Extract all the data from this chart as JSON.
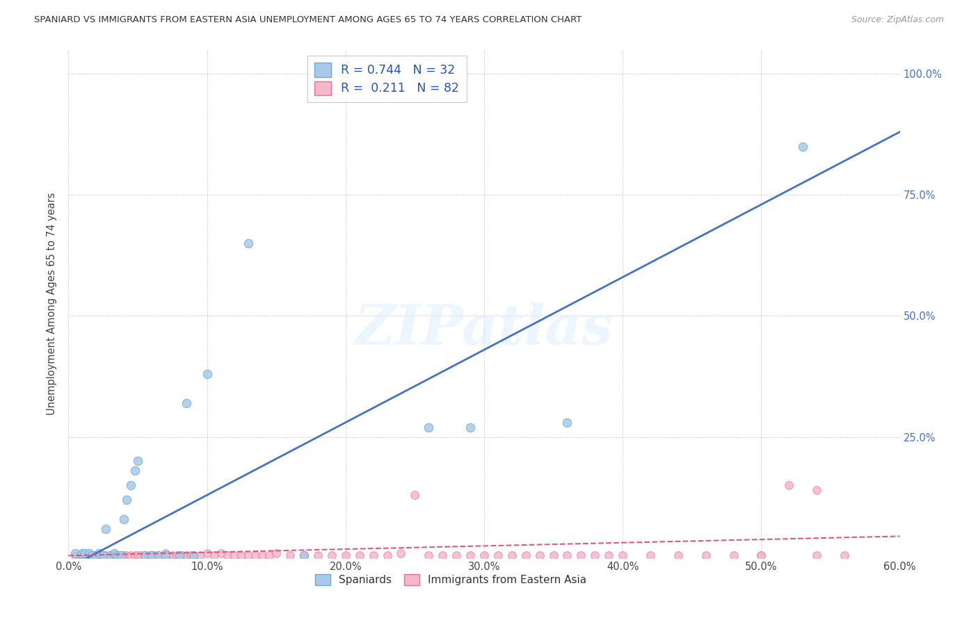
{
  "title": "SPANIARD VS IMMIGRANTS FROM EASTERN ASIA UNEMPLOYMENT AMONG AGES 65 TO 74 YEARS CORRELATION CHART",
  "source": "Source: ZipAtlas.com",
  "ylabel": "Unemployment Among Ages 65 to 74 years",
  "xlim": [
    0.0,
    0.6
  ],
  "ylim": [
    0.0,
    1.05
  ],
  "xtick_labels": [
    "0.0%",
    "10.0%",
    "20.0%",
    "30.0%",
    "40.0%",
    "50.0%",
    "60.0%"
  ],
  "xtick_vals": [
    0.0,
    0.1,
    0.2,
    0.3,
    0.4,
    0.5,
    0.6
  ],
  "right_ytick_labels": [
    "25.0%",
    "50.0%",
    "75.0%",
    "100.0%"
  ],
  "right_ytick_vals": [
    0.25,
    0.5,
    0.75,
    1.0
  ],
  "spaniards_color": "#aac9e8",
  "immigrants_color": "#f5b8ca",
  "spaniards_edge_color": "#6aaad4",
  "immigrants_edge_color": "#e87090",
  "spaniards_line_color": "#4472c4",
  "immigrants_line_color": "#e05878",
  "R_spaniards": 0.744,
  "N_spaniards": 32,
  "R_immigrants": 0.211,
  "N_immigrants": 82,
  "legend_label_spaniards": "Spaniards",
  "legend_label_immigrants": "Immigrants from Eastern Asia",
  "watermark": "ZIPatlas",
  "background_color": "#ffffff",
  "grid_color": "#d0d0d0",
  "title_color": "#333333",
  "spaniards_x": [
    0.005,
    0.01,
    0.012,
    0.015,
    0.017,
    0.02,
    0.022,
    0.025,
    0.027,
    0.03,
    0.033,
    0.035,
    0.038,
    0.04,
    0.042,
    0.045,
    0.048,
    0.05,
    0.055,
    0.06,
    0.065,
    0.07,
    0.08,
    0.085,
    0.09,
    0.1,
    0.13,
    0.17,
    0.26,
    0.29,
    0.36,
    0.53
  ],
  "spaniards_y": [
    0.01,
    0.01,
    0.01,
    0.01,
    0.005,
    0.005,
    0.01,
    0.005,
    0.06,
    0.005,
    0.01,
    0.005,
    0.005,
    0.08,
    0.12,
    0.15,
    0.18,
    0.2,
    0.005,
    0.005,
    0.005,
    0.005,
    0.005,
    0.32,
    0.005,
    0.38,
    0.65,
    0.005,
    0.27,
    0.27,
    0.28,
    0.85
  ],
  "immigrants_x": [
    0.005,
    0.008,
    0.01,
    0.012,
    0.015,
    0.018,
    0.02,
    0.022,
    0.025,
    0.027,
    0.03,
    0.032,
    0.035,
    0.038,
    0.04,
    0.042,
    0.045,
    0.048,
    0.05,
    0.052,
    0.055,
    0.058,
    0.06,
    0.062,
    0.065,
    0.068,
    0.07,
    0.072,
    0.075,
    0.078,
    0.08,
    0.082,
    0.085,
    0.088,
    0.09,
    0.095,
    0.1,
    0.105,
    0.11,
    0.115,
    0.12,
    0.125,
    0.13,
    0.135,
    0.14,
    0.145,
    0.15,
    0.16,
    0.17,
    0.18,
    0.19,
    0.2,
    0.21,
    0.22,
    0.23,
    0.24,
    0.25,
    0.26,
    0.27,
    0.28,
    0.29,
    0.3,
    0.31,
    0.32,
    0.33,
    0.34,
    0.35,
    0.36,
    0.37,
    0.38,
    0.39,
    0.4,
    0.42,
    0.44,
    0.46,
    0.48,
    0.5,
    0.52,
    0.54,
    0.56,
    0.5,
    0.54
  ],
  "immigrants_y": [
    0.005,
    0.005,
    0.005,
    0.005,
    0.005,
    0.005,
    0.005,
    0.005,
    0.005,
    0.005,
    0.005,
    0.005,
    0.005,
    0.005,
    0.005,
    0.005,
    0.005,
    0.005,
    0.005,
    0.005,
    0.005,
    0.005,
    0.005,
    0.005,
    0.005,
    0.005,
    0.01,
    0.005,
    0.005,
    0.005,
    0.005,
    0.005,
    0.005,
    0.005,
    0.005,
    0.005,
    0.01,
    0.005,
    0.01,
    0.005,
    0.005,
    0.005,
    0.005,
    0.005,
    0.005,
    0.005,
    0.01,
    0.005,
    0.005,
    0.005,
    0.005,
    0.005,
    0.005,
    0.005,
    0.005,
    0.01,
    0.13,
    0.005,
    0.005,
    0.005,
    0.005,
    0.005,
    0.005,
    0.005,
    0.005,
    0.005,
    0.005,
    0.005,
    0.005,
    0.005,
    0.005,
    0.005,
    0.005,
    0.005,
    0.005,
    0.005,
    0.005,
    0.15,
    0.14,
    0.005,
    0.005,
    0.005
  ],
  "spaniards_trendline": [
    0.0,
    0.6,
    -0.02,
    0.88
  ],
  "immigrants_trendline": [
    0.0,
    0.6,
    0.005,
    0.045
  ]
}
